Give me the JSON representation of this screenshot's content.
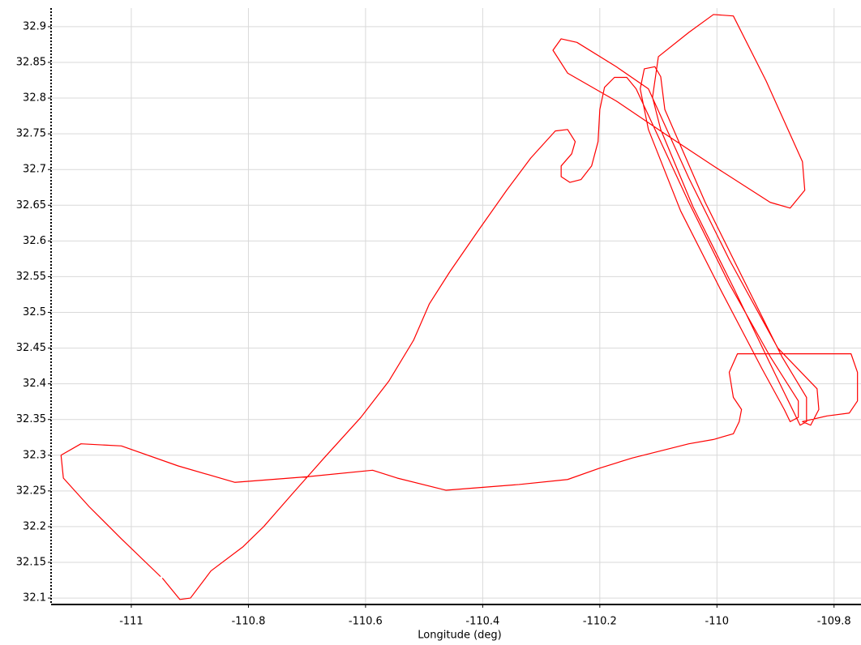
{
  "chart_data": {
    "type": "line",
    "x_label": "Longitude (deg)",
    "x": [
      -110.947,
      -110.934,
      -110.917,
      -110.899,
      -110.864,
      -110.809,
      -110.774,
      -110.726,
      -110.671,
      -110.608,
      -110.56,
      -110.518,
      -110.491,
      -110.456,
      -110.408,
      -110.359,
      -110.318,
      -110.276,
      -110.255,
      -110.242,
      -110.248,
      -110.266,
      -110.266,
      -110.251,
      -110.232,
      -110.214,
      -110.203,
      -110.2,
      -110.192,
      -110.175,
      -110.154,
      -110.138,
      -110.048,
      -109.979,
      -109.909,
      -109.861,
      -109.861,
      -109.875,
      -109.885,
      -109.923,
      -109.992,
      -110.062,
      -110.117,
      -110.131,
      -110.124,
      -110.106,
      -110.096,
      -110.089,
      -110.02,
      -109.951,
      -109.889,
      -109.847,
      -109.847,
      -109.858,
      -109.868,
      -109.902,
      -109.972,
      -110.041,
      -110.096,
      -110.11,
      -110.1,
      -110.048,
      -110.006,
      -109.972,
      -109.916,
      -109.854,
      -109.85,
      -109.875,
      -109.909,
      -110.006,
      -110.089,
      -110.172,
      -110.255,
      -110.28,
      -110.266,
      -110.239,
      -110.172,
      -110.117,
      -110.048,
      -109.979,
      -109.896,
      -109.829,
      -109.826,
      -109.84,
      -109.854,
      -109.812,
      -109.774,
      -109.76,
      -109.76,
      -109.771,
      -109.965,
      -109.979,
      -109.972,
      -109.958,
      -109.962,
      -109.972,
      -110.006,
      -110.048,
      -110.145,
      -110.2,
      -110.255,
      -110.338,
      -110.463,
      -110.546,
      -110.588,
      -110.698,
      -110.823,
      -110.92,
      -111.017,
      -111.086,
      -111.12,
      -111.116,
      -111.072,
      -111.017,
      -110.95
    ],
    "values": [
      32.128,
      32.115,
      32.098,
      32.1,
      32.138,
      32.172,
      32.2,
      32.245,
      32.296,
      32.353,
      32.404,
      32.461,
      32.512,
      32.557,
      32.614,
      32.671,
      32.716,
      32.754,
      32.756,
      32.739,
      32.722,
      32.705,
      32.69,
      32.682,
      32.686,
      32.705,
      32.739,
      32.784,
      32.815,
      32.829,
      32.829,
      32.813,
      32.654,
      32.54,
      32.438,
      32.376,
      32.353,
      32.347,
      32.364,
      32.421,
      32.529,
      32.642,
      32.756,
      32.813,
      32.841,
      32.844,
      32.83,
      32.784,
      32.654,
      32.54,
      32.438,
      32.381,
      32.347,
      32.342,
      32.359,
      32.416,
      32.535,
      32.648,
      32.756,
      32.801,
      32.858,
      32.892,
      32.917,
      32.915,
      32.824,
      32.711,
      32.671,
      32.646,
      32.654,
      32.705,
      32.75,
      32.796,
      32.835,
      32.867,
      32.883,
      32.878,
      32.844,
      32.813,
      32.688,
      32.574,
      32.45,
      32.393,
      32.364,
      32.342,
      32.347,
      32.355,
      32.359,
      32.376,
      32.416,
      32.442,
      32.442,
      32.416,
      32.381,
      32.364,
      32.347,
      32.33,
      32.322,
      32.316,
      32.296,
      32.282,
      32.266,
      32.259,
      32.251,
      32.268,
      32.279,
      32.27,
      32.262,
      32.285,
      32.313,
      32.316,
      32.3,
      32.268,
      32.228,
      32.183,
      32.13
    ],
    "color": "#ff0000",
    "xlim": [
      -111.137,
      -109.754
    ],
    "xticks": [
      -111,
      -110.8,
      -110.6,
      -110.4,
      -110.2,
      -110,
      -109.8
    ],
    "ylim": [
      32.091,
      32.926
    ],
    "yticks": [
      32.1,
      32.15,
      32.2,
      32.25,
      32.3,
      32.35,
      32.4,
      32.45,
      32.5,
      32.55,
      32.6,
      32.65,
      32.7,
      32.75,
      32.8,
      32.85,
      32.9
    ],
    "grid": true
  }
}
